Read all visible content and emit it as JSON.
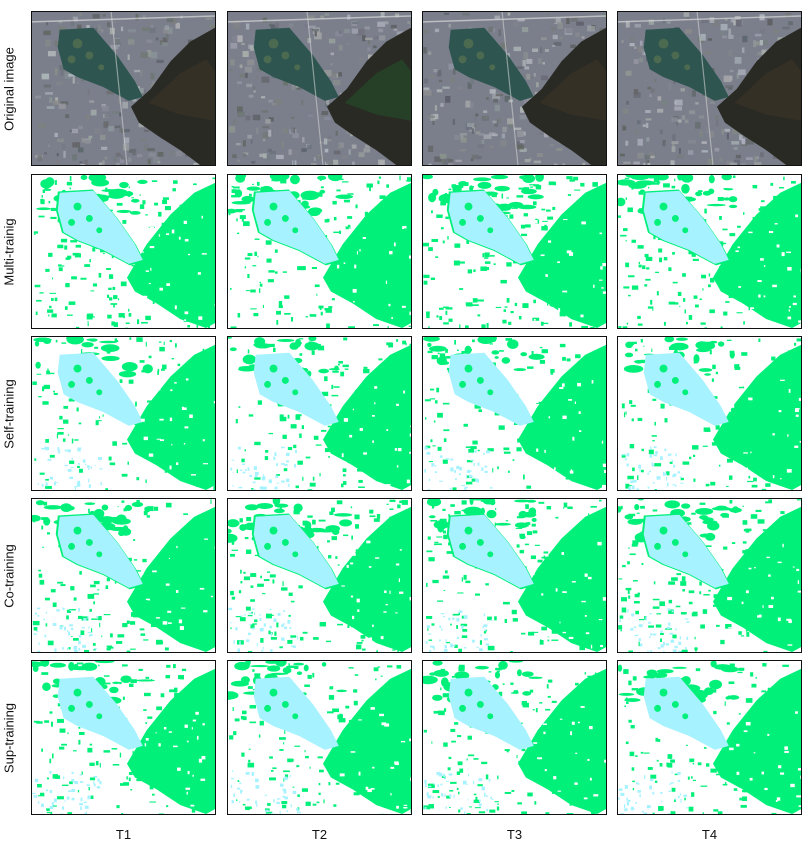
{
  "row_labels": [
    "Original image",
    "Multi-trainig",
    "Self-training",
    "Co-training",
    "Sup-training"
  ],
  "col_labels": [
    "T1",
    "T2",
    "T3",
    "T4"
  ],
  "colors": {
    "vegetation": "#00f07a",
    "water": "#a6f2ff",
    "background": "#ffffff",
    "border": "#111111",
    "satellite_urban": "#7b7f8c",
    "satellite_lake": "#2e5550",
    "satellite_mountain": "#2a2a24"
  }
}
